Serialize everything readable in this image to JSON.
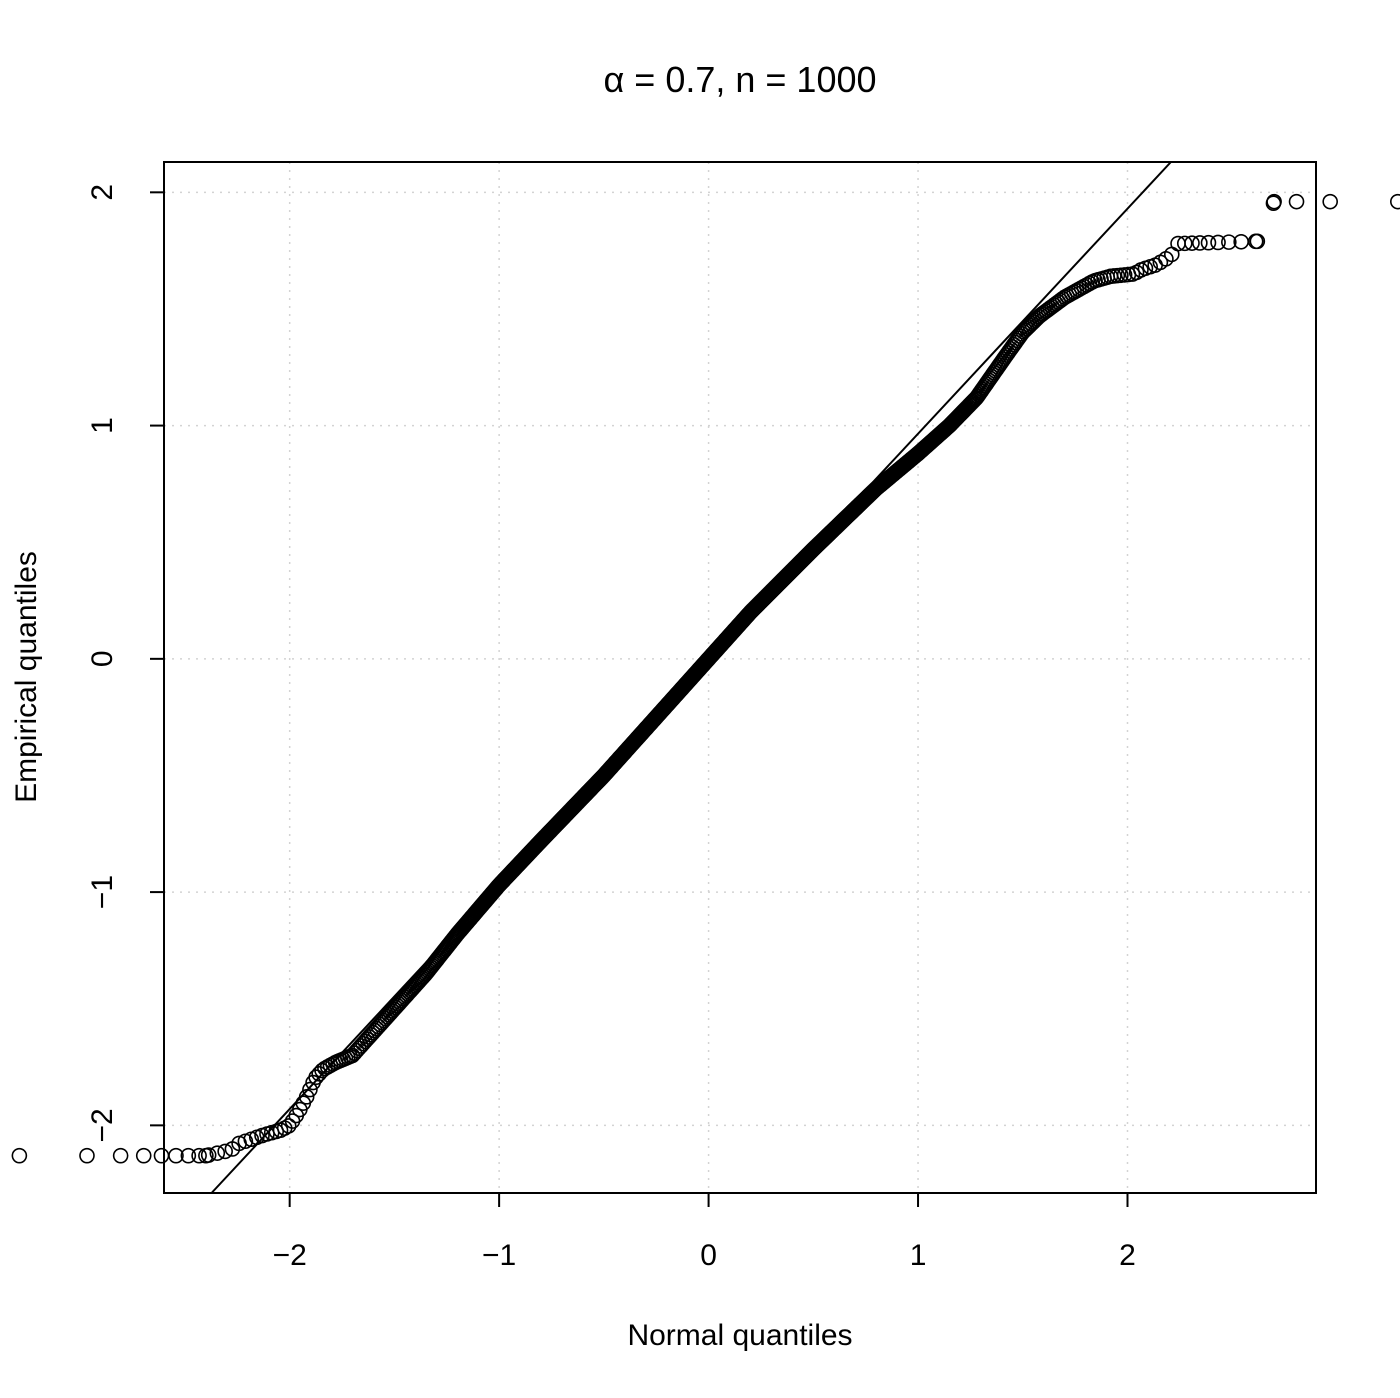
{
  "chart_data": {
    "type": "scatter",
    "title": "α = 0.7, n = 1000",
    "xlabel": "Normal quantiles",
    "ylabel": "Empirical quantiles",
    "xlim": [
      -2.6,
      2.9
    ],
    "ylim": [
      -2.29,
      2.13
    ],
    "x_ticks": [
      -2,
      -1,
      0,
      1,
      2
    ],
    "x_tick_labels": [
      "−2",
      "−1",
      "0",
      "1",
      "2"
    ],
    "y_ticks": [
      -2,
      -1,
      0,
      1,
      2
    ],
    "y_tick_labels": [
      "−2",
      "−1",
      "0",
      "1",
      "2"
    ],
    "grid": true,
    "legend": false,
    "reference_line": {
      "type": "qqline",
      "intercept": 0.0,
      "slope": 0.965
    },
    "point_style": "open-circle",
    "n": 1000,
    "quantile_anchors": {
      "x": [
        -2.4,
        -2.3,
        -2.27,
        -2.25,
        -2.12,
        -2.08,
        -2.04,
        -2.0,
        -1.97,
        -1.95,
        -1.92,
        -1.88,
        -1.84,
        -1.78,
        -1.7,
        -1.6,
        -1.45,
        -1.35,
        -1.2,
        -1.0,
        -0.8,
        -0.5,
        -0.2,
        0.0,
        0.2,
        0.5,
        0.8,
        1.0,
        1.15,
        1.28,
        1.42,
        1.5,
        1.58,
        1.7,
        1.78,
        1.84,
        1.88,
        1.92,
        2.03,
        2.07,
        2.14,
        2.21,
        2.23,
        2.62,
        2.7
      ],
      "y": [
        -2.13,
        -2.11,
        -2.1,
        -2.08,
        -2.04,
        -2.03,
        -2.02,
        -2.0,
        -1.96,
        -1.93,
        -1.88,
        -1.8,
        -1.76,
        -1.73,
        -1.7,
        -1.6,
        -1.45,
        -1.35,
        -1.18,
        -0.97,
        -0.78,
        -0.5,
        -0.2,
        0.0,
        0.2,
        0.47,
        0.73,
        0.88,
        1.0,
        1.12,
        1.3,
        1.4,
        1.47,
        1.55,
        1.59,
        1.62,
        1.63,
        1.64,
        1.65,
        1.67,
        1.69,
        1.73,
        1.78,
        1.79,
        1.96
      ]
    }
  }
}
